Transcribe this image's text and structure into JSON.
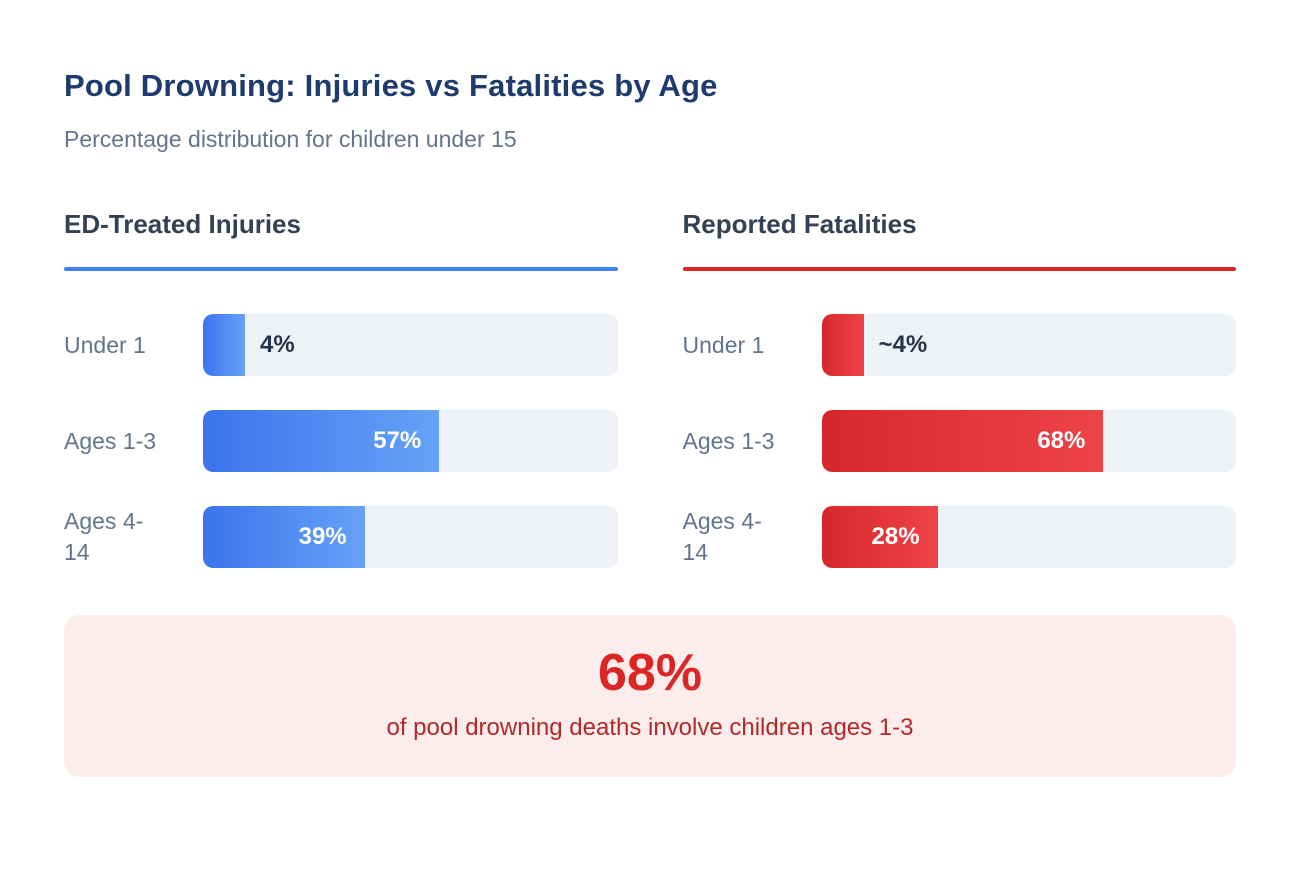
{
  "header": {
    "title": "Pool Drowning: Injuries vs Fatalities by Age",
    "subtitle": "Percentage distribution for children under 15"
  },
  "chart_data": {
    "type": "bar",
    "orientation": "horizontal",
    "title": "Pool Drowning: Injuries vs Fatalities by Age",
    "subtitle": "Percentage distribution for children under 15",
    "categories": [
      "Under 1",
      "Ages 1-3",
      "Ages 4-14"
    ],
    "xlim": [
      0,
      100
    ],
    "unit": "%",
    "grid": false,
    "legend_position": "panel-headers",
    "track_color": "#eef1f6",
    "series": [
      {
        "name": "ED-Treated Injuries",
        "accent": "#3b82f6",
        "bar_gradient": [
          "#3b74ec",
          "#65a2f7"
        ],
        "values": [
          4,
          57,
          39
        ],
        "value_labels": [
          "4%",
          "57%",
          "39%"
        ]
      },
      {
        "name": "Reported Fatalities",
        "accent": "#dc2626",
        "bar_gradient": [
          "#d6282c",
          "#ee4347"
        ],
        "values": [
          4,
          68,
          28
        ],
        "value_labels": [
          "~4%",
          "68%",
          "28%"
        ]
      }
    ]
  },
  "callout": {
    "value": "68%",
    "text": "of pool drowning deaths involve children ages 1-3",
    "bg": "#fdecec",
    "value_color": "#dc2626",
    "text_color": "#b22929"
  },
  "colors": {
    "title": "#1e3a6e",
    "subtitle": "#64748b",
    "section_header": "#334155",
    "row_label": "#64748b",
    "value_inside": "#ffffff",
    "value_outside": "#253247"
  }
}
